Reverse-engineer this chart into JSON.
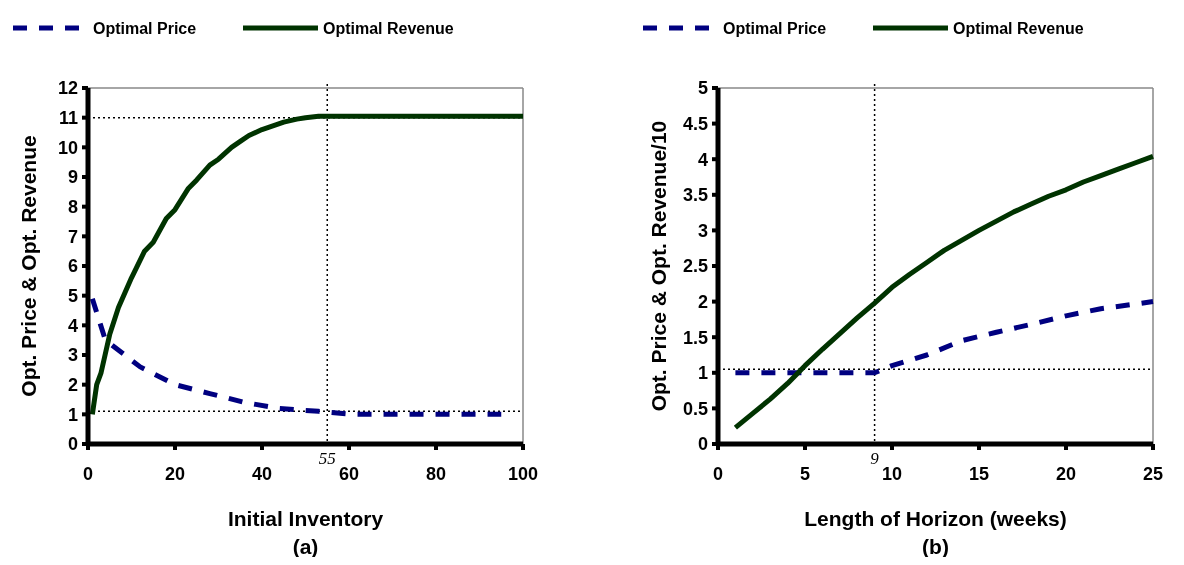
{
  "chart_data": [
    {
      "type": "line",
      "xlabel": "Initial Inventory",
      "ylabel": "Opt. Price & Opt. Revenue",
      "annotations": [
        "(a)"
      ],
      "xlim": [
        0,
        100
      ],
      "xticks": [
        0,
        20,
        40,
        60,
        80,
        100
      ],
      "ylim": [
        0,
        12
      ],
      "yticks": [
        0,
        1,
        2,
        3,
        4,
        5,
        6,
        7,
        8,
        9,
        10,
        11,
        12
      ],
      "legend": "top",
      "grid": false,
      "ref_lines": [
        {
          "axis": "x",
          "value": 55,
          "label": "55",
          "line_style": "dotted"
        },
        {
          "axis": "y",
          "value": 11,
          "line_style": "dotted"
        },
        {
          "axis": "y",
          "value": 1.1,
          "line_style": "dotted"
        }
      ],
      "series": [
        {
          "name": "Optimal Price",
          "color": "#000080",
          "line_style": "dashed",
          "x": [
            1,
            4,
            12,
            20,
            28,
            36,
            44,
            53,
            61,
            69,
            78,
            86,
            95
          ],
          "values": [
            4.9,
            3.5,
            2.6,
            2.0,
            1.7,
            1.4,
            1.2,
            1.1,
            1.0,
            1.0,
            1.0,
            1.0,
            1.0
          ]
        },
        {
          "name": "Optimal Revenue",
          "color": "#003300",
          "line_style": "solid",
          "x": [
            1,
            2,
            3,
            5,
            7,
            10,
            13,
            15,
            18,
            20,
            23,
            25,
            28,
            30,
            33,
            35,
            37,
            40,
            43,
            45,
            48,
            50,
            53,
            100
          ],
          "values": [
            1.0,
            2.0,
            2.4,
            3.7,
            4.6,
            5.6,
            6.5,
            6.8,
            7.6,
            7.9,
            8.6,
            8.9,
            9.4,
            9.6,
            10.0,
            10.2,
            10.4,
            10.6,
            10.75,
            10.85,
            10.95,
            11.0,
            11.05,
            11.05
          ]
        }
      ]
    },
    {
      "type": "line",
      "xlabel": "Length of Horizon (weeks)",
      "ylabel": "Opt. Price & Opt. Revenue/10",
      "annotations": [
        "(b)"
      ],
      "xlim": [
        0,
        25
      ],
      "xticks": [
        0,
        5,
        10,
        15,
        20,
        25
      ],
      "ylim": [
        0,
        5
      ],
      "yticks": [
        0,
        0.5,
        1,
        1.5,
        2,
        2.5,
        3,
        3.5,
        4,
        4.5,
        5
      ],
      "legend": "top",
      "grid": false,
      "ref_lines": [
        {
          "axis": "x",
          "value": 9,
          "label": "9",
          "line_style": "dotted"
        },
        {
          "axis": "y",
          "value": 1.05,
          "line_style": "dotted"
        }
      ],
      "series": [
        {
          "name": "Optimal Price",
          "color": "#000080",
          "line_style": "dashed",
          "x": [
            1,
            2,
            3,
            4,
            5,
            6,
            7,
            8,
            9,
            10,
            12,
            14,
            16,
            18,
            20,
            22,
            25
          ],
          "values": [
            1.0,
            1.0,
            1.0,
            1.0,
            1.0,
            1.0,
            1.0,
            1.0,
            1.0,
            1.1,
            1.25,
            1.45,
            1.57,
            1.68,
            1.8,
            1.9,
            2.0
          ]
        },
        {
          "name": "Optimal Revenue",
          "color": "#003300",
          "line_style": "solid",
          "x": [
            1,
            2,
            3,
            4,
            5,
            6,
            7,
            8,
            9,
            10,
            11,
            12,
            13,
            14,
            15,
            16,
            17,
            18,
            19,
            20,
            21,
            22,
            23,
            24,
            25
          ],
          "values": [
            0.23,
            0.43,
            0.63,
            0.85,
            1.1,
            1.33,
            1.55,
            1.77,
            1.98,
            2.2,
            2.38,
            2.55,
            2.72,
            2.86,
            3.0,
            3.13,
            3.26,
            3.37,
            3.48,
            3.57,
            3.68,
            3.77,
            3.86,
            3.95,
            4.04
          ]
        }
      ]
    }
  ]
}
